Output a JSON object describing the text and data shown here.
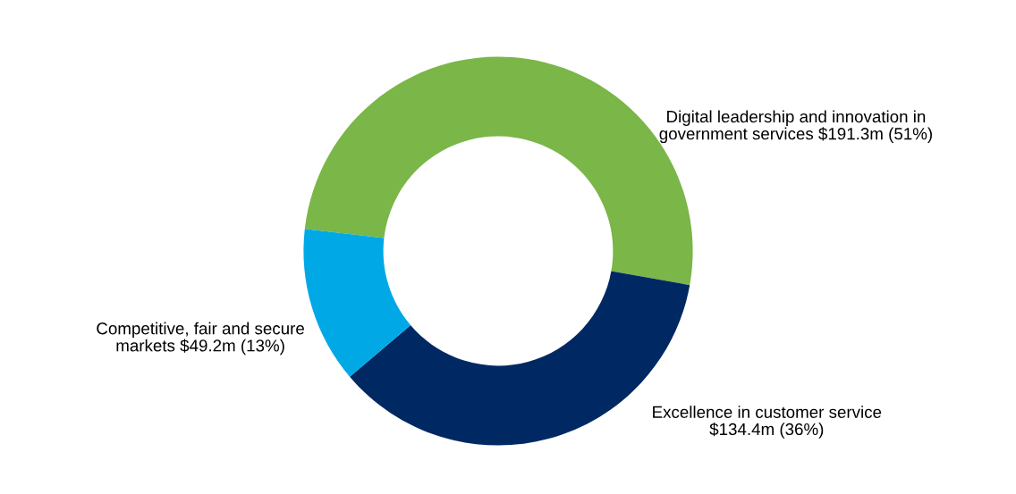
{
  "chart_data": {
    "type": "donut",
    "categories": [
      "Digital leadership and innovation in\ngovernment services $191.3m (51%)",
      "Excellence in customer service\n$134.4m (36%)",
      "Competitive, fair and secure\nmarkets $49.2m (13%)"
    ],
    "values": [
      51,
      36,
      13
    ],
    "colors": [
      "#7ab648",
      "#002863",
      "#00a9e6"
    ],
    "legend": false
  }
}
